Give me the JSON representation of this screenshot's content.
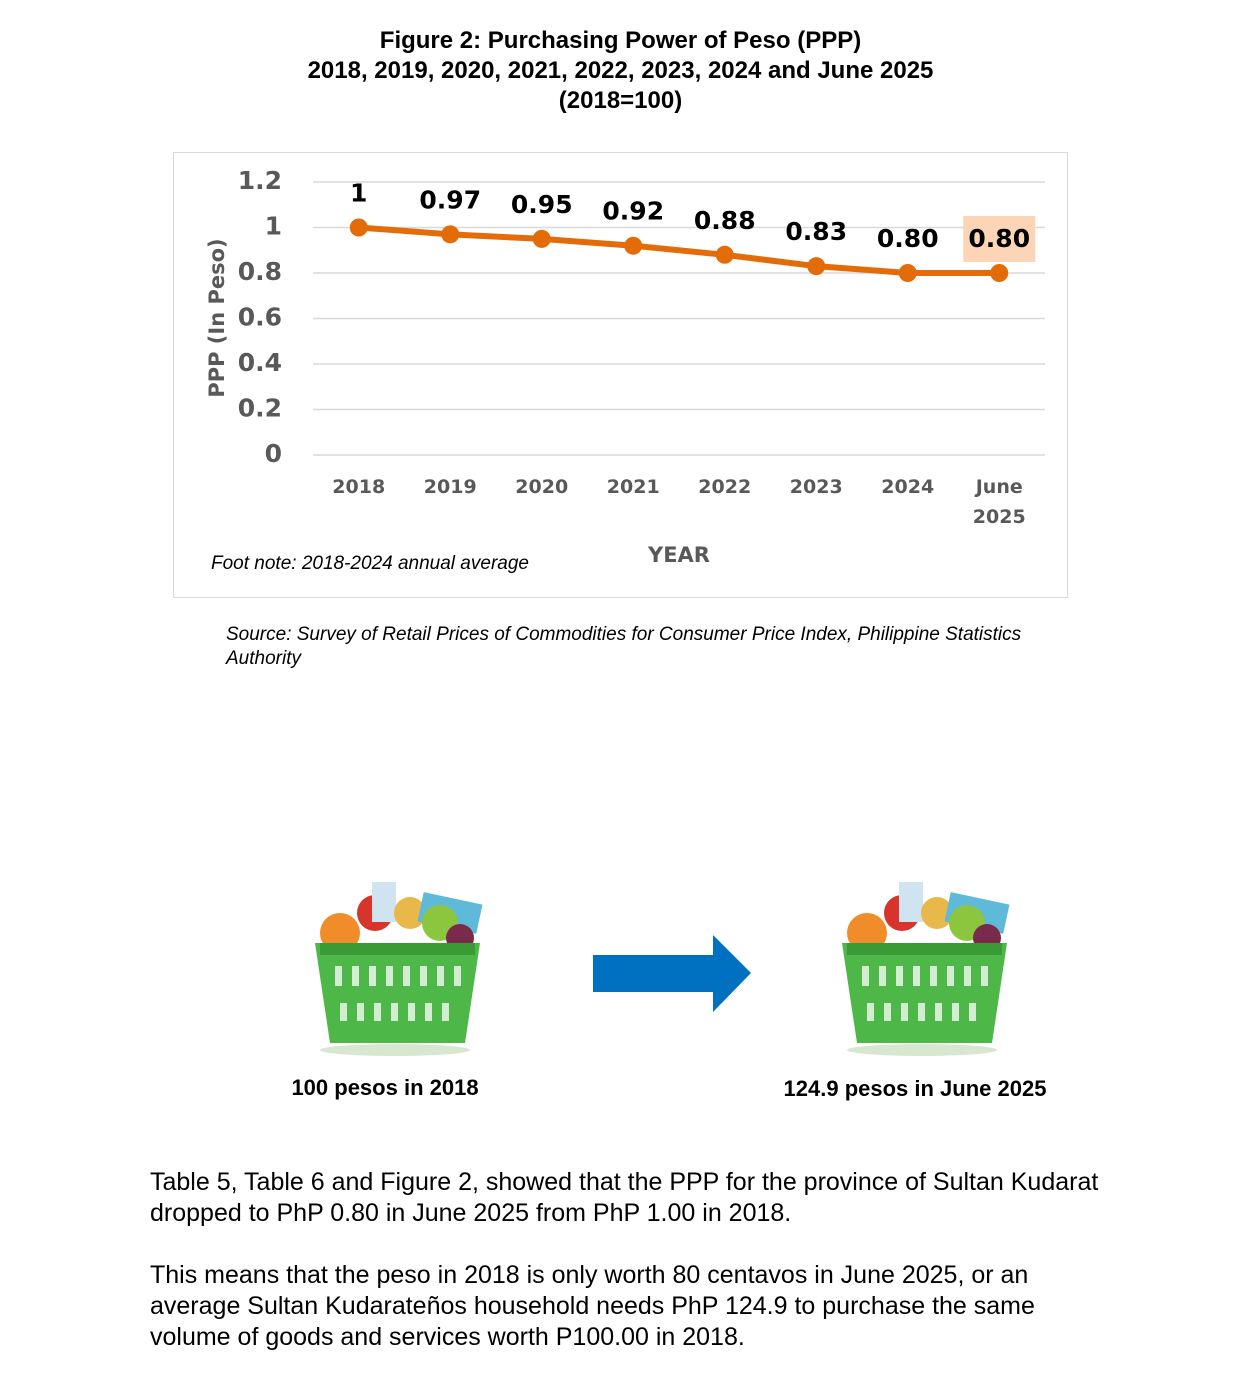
{
  "title": [
    "Figure 2:  Purchasing Power of Peso (PPP)",
    "2018, 2019, 2020, 2021, 2022, 2023, 2024 and June 2025",
    "(2018=100)"
  ],
  "chart_data": {
    "type": "line",
    "y_label": "PPP (In Peso)",
    "x_label": "YEAR",
    "footnote": "Foot note: 2018-2024 annual average",
    "categories": [
      "2018",
      "2019",
      "2020",
      "2021",
      "2022",
      "2023",
      "2024",
      "June 2025"
    ],
    "series": [
      {
        "name": "PPP",
        "color": "#e36c09",
        "values": [
          1,
          0.97,
          0.95,
          0.92,
          0.88,
          0.83,
          0.8,
          0.8
        ],
        "value_labels": [
          "1",
          "0.97",
          "0.95",
          "0.92",
          "0.88",
          "0.83",
          "0.80",
          "0.80"
        ]
      }
    ],
    "ylim": [
      0,
      1.2
    ],
    "yticks": [
      0,
      0.2,
      0.4,
      0.6,
      0.8,
      1,
      1.2
    ],
    "grid": true,
    "legend": false
  },
  "source": "Source: Survey of Retail Prices of Commodities for Consumer Price Index, Philippine Statistics Authority",
  "captions": [
    "100 pesos in 2018",
    "124.9 pesos in June 2025"
  ],
  "paragraphs": [
    "Table 5, Table 6 and Figure 2, showed that the PPP for the province of Sultan Kudarat dropped to PhP 0.80 in June 2025 from PhP 1.00 in 2018.",
    "This means that the peso in 2018 is only worth 80 centavos in June 2025, or an average Sultan Kudarateños household needs PhP 124.9 to purchase the same volume of goods and services worth P100.00 in 2018."
  ]
}
